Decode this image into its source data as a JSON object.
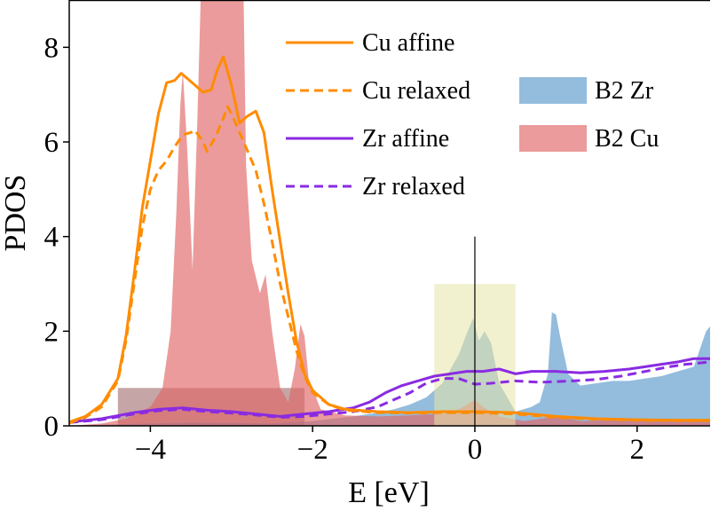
{
  "chart_data": {
    "type": "line",
    "title": "",
    "xlabel": "E [eV]",
    "ylabel": "PDOS",
    "xlim": [
      -5,
      2.9
    ],
    "ylim": [
      0,
      9
    ],
    "grid": false,
    "legend_position": "top-right",
    "x_ticks": [
      -4,
      -2,
      0,
      2
    ],
    "x_tick_labels": [
      "−4",
      "−2",
      "0",
      "2"
    ],
    "y_ticks": [
      0,
      2,
      4,
      6,
      8
    ],
    "y_tick_labels": [
      "0",
      "2",
      "4",
      "6",
      "8"
    ],
    "series": [
      {
        "name": "Cu affine",
        "kind": "line",
        "color": "#ff8c00",
        "dash": "solid",
        "points": [
          [
            -5,
            0.08
          ],
          [
            -4.8,
            0.2
          ],
          [
            -4.6,
            0.45
          ],
          [
            -4.4,
            1.0
          ],
          [
            -4.3,
            1.9
          ],
          [
            -4.2,
            3.2
          ],
          [
            -4.1,
            4.6
          ],
          [
            -4.0,
            5.6
          ],
          [
            -3.9,
            6.6
          ],
          [
            -3.8,
            7.25
          ],
          [
            -3.7,
            7.3
          ],
          [
            -3.62,
            7.45
          ],
          [
            -3.55,
            7.35
          ],
          [
            -3.45,
            7.2
          ],
          [
            -3.35,
            7.05
          ],
          [
            -3.25,
            7.1
          ],
          [
            -3.18,
            7.5
          ],
          [
            -3.1,
            7.8
          ],
          [
            -3.0,
            7.2
          ],
          [
            -2.9,
            6.4
          ],
          [
            -2.8,
            6.55
          ],
          [
            -2.7,
            6.65
          ],
          [
            -2.6,
            6.2
          ],
          [
            -2.5,
            5.0
          ],
          [
            -2.4,
            3.9
          ],
          [
            -2.3,
            2.8
          ],
          [
            -2.2,
            1.8
          ],
          [
            -2.1,
            1.1
          ],
          [
            -2.0,
            0.75
          ],
          [
            -1.8,
            0.45
          ],
          [
            -1.6,
            0.35
          ],
          [
            -1.2,
            0.3
          ],
          [
            -0.8,
            0.28
          ],
          [
            -0.4,
            0.3
          ],
          [
            0,
            0.3
          ],
          [
            0.5,
            0.28
          ],
          [
            1.0,
            0.2
          ],
          [
            1.5,
            0.15
          ],
          [
            2.0,
            0.13
          ],
          [
            2.5,
            0.12
          ],
          [
            2.9,
            0.12
          ]
        ]
      },
      {
        "name": "Cu relaxed",
        "kind": "line",
        "color": "#ff8c00",
        "dash": "dashed",
        "points": [
          [
            -5,
            0.06
          ],
          [
            -4.8,
            0.18
          ],
          [
            -4.6,
            0.4
          ],
          [
            -4.4,
            0.95
          ],
          [
            -4.3,
            1.8
          ],
          [
            -4.2,
            3.0
          ],
          [
            -4.1,
            4.2
          ],
          [
            -4.0,
            5.0
          ],
          [
            -3.9,
            5.4
          ],
          [
            -3.8,
            5.6
          ],
          [
            -3.7,
            5.9
          ],
          [
            -3.6,
            6.15
          ],
          [
            -3.5,
            6.2
          ],
          [
            -3.45,
            6.25
          ],
          [
            -3.35,
            6.0
          ],
          [
            -3.3,
            5.8
          ],
          [
            -3.2,
            6.1
          ],
          [
            -3.1,
            6.5
          ],
          [
            -3.05,
            6.75
          ],
          [
            -3.0,
            6.6
          ],
          [
            -2.9,
            6.2
          ],
          [
            -2.8,
            5.8
          ],
          [
            -2.7,
            5.4
          ],
          [
            -2.6,
            4.7
          ],
          [
            -2.5,
            3.9
          ],
          [
            -2.4,
            3.0
          ],
          [
            -2.3,
            2.3
          ],
          [
            -2.2,
            1.6
          ],
          [
            -2.1,
            1.05
          ],
          [
            -2.0,
            0.7
          ],
          [
            -1.8,
            0.45
          ],
          [
            -1.6,
            0.33
          ],
          [
            -1.2,
            0.28
          ],
          [
            -0.8,
            0.27
          ],
          [
            -0.4,
            0.28
          ],
          [
            0,
            0.28
          ],
          [
            0.5,
            0.25
          ],
          [
            1.0,
            0.18
          ],
          [
            1.5,
            0.14
          ],
          [
            2.0,
            0.12
          ],
          [
            2.5,
            0.11
          ],
          [
            2.9,
            0.11
          ]
        ]
      },
      {
        "name": "Zr affine",
        "kind": "line",
        "color": "#8a2be2",
        "dash": "solid",
        "points": [
          [
            -5,
            0.08
          ],
          [
            -4.6,
            0.15
          ],
          [
            -4.2,
            0.28
          ],
          [
            -3.9,
            0.35
          ],
          [
            -3.6,
            0.38
          ],
          [
            -3.3,
            0.33
          ],
          [
            -3.0,
            0.3
          ],
          [
            -2.7,
            0.25
          ],
          [
            -2.4,
            0.2
          ],
          [
            -2.1,
            0.25
          ],
          [
            -1.8,
            0.3
          ],
          [
            -1.5,
            0.38
          ],
          [
            -1.3,
            0.5
          ],
          [
            -1.1,
            0.7
          ],
          [
            -0.9,
            0.85
          ],
          [
            -0.7,
            0.95
          ],
          [
            -0.5,
            1.05
          ],
          [
            -0.3,
            1.1
          ],
          [
            -0.1,
            1.15
          ],
          [
            0.1,
            1.15
          ],
          [
            0.3,
            1.2
          ],
          [
            0.5,
            1.1
          ],
          [
            0.7,
            1.15
          ],
          [
            1.0,
            1.15
          ],
          [
            1.3,
            1.12
          ],
          [
            1.6,
            1.15
          ],
          [
            1.9,
            1.2
          ],
          [
            2.1,
            1.25
          ],
          [
            2.3,
            1.3
          ],
          [
            2.5,
            1.35
          ],
          [
            2.7,
            1.42
          ],
          [
            2.9,
            1.42
          ]
        ]
      },
      {
        "name": "Zr relaxed",
        "kind": "line",
        "color": "#8a2be2",
        "dash": "dashed",
        "points": [
          [
            -5,
            0.07
          ],
          [
            -4.6,
            0.13
          ],
          [
            -4.2,
            0.25
          ],
          [
            -3.9,
            0.32
          ],
          [
            -3.6,
            0.35
          ],
          [
            -3.3,
            0.3
          ],
          [
            -3.0,
            0.27
          ],
          [
            -2.7,
            0.23
          ],
          [
            -2.4,
            0.18
          ],
          [
            -2.1,
            0.2
          ],
          [
            -1.8,
            0.25
          ],
          [
            -1.5,
            0.3
          ],
          [
            -1.2,
            0.4
          ],
          [
            -1.0,
            0.55
          ],
          [
            -0.8,
            0.7
          ],
          [
            -0.6,
            0.9
          ],
          [
            -0.4,
            1.0
          ],
          [
            -0.2,
            1.0
          ],
          [
            0,
            0.88
          ],
          [
            0.2,
            0.9
          ],
          [
            0.5,
            0.95
          ],
          [
            0.8,
            0.92
          ],
          [
            1.2,
            0.95
          ],
          [
            1.5,
            0.98
          ],
          [
            1.8,
            1.05
          ],
          [
            2.1,
            1.15
          ],
          [
            2.4,
            1.25
          ],
          [
            2.6,
            1.3
          ],
          [
            2.9,
            1.35
          ]
        ]
      },
      {
        "name": "B2 Zr",
        "kind": "area",
        "color": "#4d8fc4",
        "opacity": 0.6,
        "points": [
          [
            -5,
            0
          ],
          [
            -4.5,
            0.03
          ],
          [
            -4.0,
            0.05
          ],
          [
            -3.5,
            0.07
          ],
          [
            -3.0,
            0.06
          ],
          [
            -2.5,
            0.05
          ],
          [
            -2.0,
            0.1
          ],
          [
            -1.5,
            0.2
          ],
          [
            -1.2,
            0.28
          ],
          [
            -1.0,
            0.35
          ],
          [
            -0.8,
            0.45
          ],
          [
            -0.6,
            0.6
          ],
          [
            -0.4,
            0.9
          ],
          [
            -0.2,
            1.5
          ],
          [
            -0.1,
            1.95
          ],
          [
            -0.02,
            2.28
          ],
          [
            0.05,
            1.8
          ],
          [
            0.12,
            2.0
          ],
          [
            0.2,
            1.75
          ],
          [
            0.3,
            0.9
          ],
          [
            0.5,
            0.3
          ],
          [
            0.7,
            0.4
          ],
          [
            0.8,
            0.5
          ],
          [
            0.9,
            1.1
          ],
          [
            0.95,
            2.4
          ],
          [
            1.0,
            2.35
          ],
          [
            1.05,
            1.9
          ],
          [
            1.15,
            1.1
          ],
          [
            1.3,
            0.85
          ],
          [
            1.5,
            0.9
          ],
          [
            1.7,
            0.95
          ],
          [
            1.9,
            0.95
          ],
          [
            2.1,
            1.0
          ],
          [
            2.3,
            1.05
          ],
          [
            2.5,
            1.15
          ],
          [
            2.7,
            1.25
          ],
          [
            2.85,
            2.0
          ],
          [
            2.9,
            2.1
          ]
        ]
      },
      {
        "name": "B2 Cu",
        "kind": "area",
        "color": "#e06666",
        "opacity": 0.65,
        "points": [
          [
            -5,
            0
          ],
          [
            -4.6,
            0.05
          ],
          [
            -4.3,
            0.15
          ],
          [
            -4.0,
            0.4
          ],
          [
            -3.85,
            0.8
          ],
          [
            -3.75,
            2.0
          ],
          [
            -3.68,
            4.5
          ],
          [
            -3.63,
            6.8
          ],
          [
            -3.6,
            7.5
          ],
          [
            -3.55,
            6.0
          ],
          [
            -3.48,
            3.3
          ],
          [
            -3.42,
            6.5
          ],
          [
            -3.38,
            9.0
          ],
          [
            -3.3,
            9.0
          ],
          [
            -3.2,
            9.0
          ],
          [
            -3.1,
            9.0
          ],
          [
            -3.0,
            9.0
          ],
          [
            -2.9,
            9.0
          ],
          [
            -2.85,
            9.0
          ],
          [
            -2.82,
            5.5
          ],
          [
            -2.75,
            3.5
          ],
          [
            -2.65,
            2.8
          ],
          [
            -2.58,
            3.2
          ],
          [
            -2.5,
            2.0
          ],
          [
            -2.4,
            0.8
          ],
          [
            -2.3,
            0.5
          ],
          [
            -2.22,
            1.2
          ],
          [
            -2.15,
            2.15
          ],
          [
            -2.1,
            1.9
          ],
          [
            -2.05,
            1.0
          ],
          [
            -1.9,
            0.35
          ],
          [
            -1.6,
            0.22
          ],
          [
            -1.2,
            0.2
          ],
          [
            -0.8,
            0.22
          ],
          [
            -0.4,
            0.26
          ],
          [
            -0.2,
            0.35
          ],
          [
            0,
            0.55
          ],
          [
            0.1,
            0.4
          ],
          [
            0.3,
            0.2
          ],
          [
            0.6,
            0.1
          ],
          [
            0.95,
            0.18
          ],
          [
            1.05,
            0.2
          ],
          [
            1.3,
            0.1
          ],
          [
            1.6,
            0.12
          ],
          [
            2.0,
            0.1
          ],
          [
            2.5,
            0.12
          ],
          [
            2.9,
            0.1
          ]
        ]
      }
    ],
    "background_shading": [
      {
        "x_range": [
          -4.4,
          -2.1
        ],
        "y_range": [
          0,
          0.8
        ],
        "color": "#8b4c4c",
        "opacity": 0.5
      }
    ],
    "highlight_region": {
      "x_range": [
        -0.5,
        0.5
      ],
      "y_range": [
        0,
        3.0
      ],
      "color": "#e8e5a8",
      "opacity": 0.55
    },
    "vline": {
      "x": 0,
      "y_range": [
        0,
        4.0
      ],
      "color": "#000000"
    },
    "legend_left": [
      "Cu affine",
      "Cu relaxed",
      "Zr affine",
      "Zr relaxed"
    ],
    "legend_right": [
      "B2 Zr",
      "B2 Cu"
    ]
  }
}
